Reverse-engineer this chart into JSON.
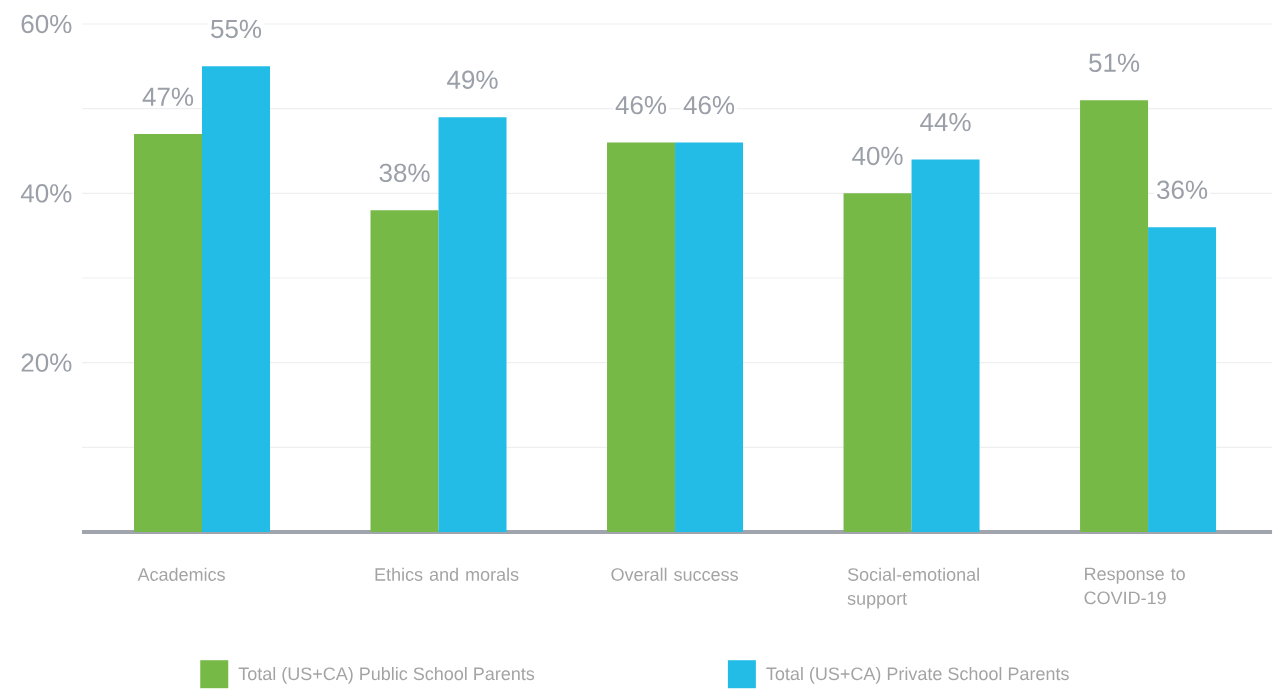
{
  "chart_data": {
    "type": "bar",
    "categories": [
      "Academics",
      "Ethics and morals",
      "Overall success",
      "Social-emotional support",
      "Response to COVID-19"
    ],
    "series": [
      {
        "name": "Total (US+CA) Public School Parents",
        "color": "#76b947",
        "values": [
          47,
          38,
          46,
          40,
          51
        ],
        "value_labels": [
          "47%",
          "38%",
          "46%",
          "40%",
          "51%"
        ]
      },
      {
        "name": "Total (US+CA) Private School Parents",
        "color": "#22bce6",
        "values": [
          55,
          49,
          46,
          44,
          36
        ],
        "value_labels": [
          "55%",
          "49%",
          "46%",
          "44%",
          "36%"
        ]
      }
    ],
    "ylim": [
      0,
      60
    ],
    "yticks": [
      {
        "value": 0,
        "label": null
      },
      {
        "value": 10,
        "label": null
      },
      {
        "value": 20,
        "label": "20%"
      },
      {
        "value": 30,
        "label": null
      },
      {
        "value": 40,
        "label": "40%"
      },
      {
        "value": 50,
        "label": null
      },
      {
        "value": 60,
        "label": "60%"
      }
    ],
    "grid": "y",
    "legend": "bottom"
  }
}
